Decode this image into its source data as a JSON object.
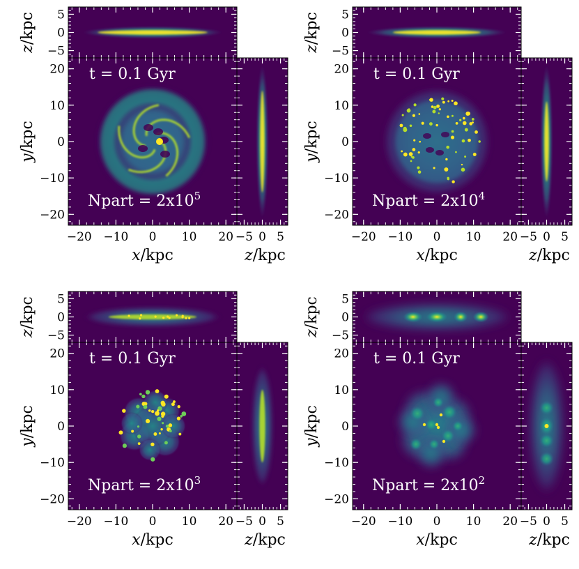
{
  "colors": {
    "background": "#440154",
    "viridis": [
      "#440154",
      "#482878",
      "#3e4a89",
      "#31688e",
      "#26828e",
      "#1f9e89",
      "#35b779",
      "#6ece58",
      "#b5de2b",
      "#fde725"
    ],
    "text_on_plot": "#ffffff",
    "axis": "#000000"
  },
  "chart_data": [
    {
      "type": "heatmap",
      "time_label": "t = 0.1 Gyr",
      "npart_label": "Npart = 2x10",
      "npart_exponent": "5",
      "npart": 200000,
      "xlabel": "x/kpc",
      "ylabel": "y/kpc",
      "zlabel": "z/kpc",
      "face_on": {
        "xlim": [
          -23,
          23
        ],
        "ylim": [
          -23,
          23
        ],
        "xticks": [
          -20,
          -10,
          0,
          10,
          20
        ],
        "yticks": [
          -20,
          -10,
          0,
          10,
          20
        ],
        "xtick_labels": [
          "−20",
          "−10",
          "0",
          "10",
          "20"
        ],
        "ytick_labels": [
          "−20",
          "−10",
          "0",
          "10",
          "20"
        ]
      },
      "edge_on_xz": {
        "xlim": [
          -23,
          23
        ],
        "zlim": [
          -7,
          7
        ],
        "zticks": [
          -5,
          0,
          5
        ],
        "ztick_labels": [
          "−5",
          "0",
          "5"
        ]
      },
      "edge_on_zy": {
        "zlim": [
          -7,
          7
        ],
        "ylim": [
          -23,
          23
        ],
        "zticks": [
          -5,
          0,
          5
        ],
        "ztick_labels": [
          "−5",
          "0",
          "5"
        ]
      },
      "disk_radius_kpc": 15
    },
    {
      "type": "heatmap",
      "time_label": "t = 0.1 Gyr",
      "npart_label": "Npart = 2x10",
      "npart_exponent": "4",
      "npart": 20000,
      "xlabel": "x/kpc",
      "ylabel": "y/kpc",
      "zlabel": "z/kpc",
      "face_on": {
        "xlim": [
          -23,
          23
        ],
        "ylim": [
          -23,
          23
        ],
        "xticks": [
          -20,
          -10,
          0,
          10,
          20
        ],
        "yticks": [
          -20,
          -10,
          0,
          10,
          20
        ],
        "xtick_labels": [
          "−20",
          "−10",
          "0",
          "10",
          "20"
        ],
        "ytick_labels": [
          "−20",
          "−10",
          "0",
          "10",
          "20"
        ]
      },
      "edge_on_xz": {
        "xlim": [
          -23,
          23
        ],
        "zlim": [
          -7,
          7
        ],
        "zticks": [
          -5,
          0,
          5
        ],
        "ztick_labels": [
          "−5",
          "0",
          "5"
        ]
      },
      "edge_on_zy": {
        "zlim": [
          -7,
          7
        ],
        "ylim": [
          -23,
          23
        ],
        "zticks": [
          -5,
          0,
          5
        ],
        "ztick_labels": [
          "−5",
          "0",
          "5"
        ]
      },
      "disk_radius_kpc": 15
    },
    {
      "type": "heatmap",
      "time_label": "t = 0.1 Gyr",
      "npart_label": "Npart = 2x10",
      "npart_exponent": "3",
      "npart": 2000,
      "xlabel": "x/kpc",
      "ylabel": "y/kpc",
      "zlabel": "z/kpc",
      "face_on": {
        "xlim": [
          -23,
          23
        ],
        "ylim": [
          -23,
          23
        ],
        "xticks": [
          -20,
          -10,
          0,
          10,
          20
        ],
        "yticks": [
          -20,
          -10,
          0,
          10,
          20
        ],
        "xtick_labels": [
          "−20",
          "−10",
          "0",
          "10",
          "20"
        ],
        "ytick_labels": [
          "−20",
          "−10",
          "0",
          "10",
          "20"
        ]
      },
      "edge_on_xz": {
        "xlim": [
          -23,
          23
        ],
        "zlim": [
          -7,
          7
        ],
        "zticks": [
          -5,
          0,
          5
        ],
        "ztick_labels": [
          "−5",
          "0",
          "5"
        ]
      },
      "edge_on_zy": {
        "zlim": [
          -7,
          7
        ],
        "ylim": [
          -23,
          23
        ],
        "zticks": [
          -5,
          0,
          5
        ],
        "ztick_labels": [
          "−5",
          "0",
          "5"
        ]
      },
      "disk_radius_kpc": 15
    },
    {
      "type": "heatmap",
      "time_label": "t = 0.1 Gyr",
      "npart_label": "Npart = 2x10",
      "npart_exponent": "2",
      "npart": 200,
      "xlabel": "x/kpc",
      "ylabel": "y/kpc",
      "zlabel": "z/kpc",
      "face_on": {
        "xlim": [
          -23,
          23
        ],
        "ylim": [
          -23,
          23
        ],
        "xticks": [
          -20,
          -10,
          0,
          10,
          20
        ],
        "yticks": [
          -20,
          -10,
          0,
          10,
          20
        ],
        "xtick_labels": [
          "−20",
          "−10",
          "0",
          "10",
          "20"
        ],
        "ytick_labels": [
          "−20",
          "−10",
          "0",
          "10",
          "20"
        ]
      },
      "edge_on_xz": {
        "xlim": [
          -23,
          23
        ],
        "zlim": [
          -7,
          7
        ],
        "zticks": [
          -5,
          0,
          5
        ],
        "ztick_labels": [
          "−5",
          "0",
          "5"
        ]
      },
      "edge_on_zy": {
        "zlim": [
          -7,
          7
        ],
        "ylim": [
          -23,
          23
        ],
        "zticks": [
          -5,
          0,
          5
        ],
        "ztick_labels": [
          "−5",
          "0",
          "5"
        ]
      },
      "disk_radius_kpc": 15
    }
  ]
}
